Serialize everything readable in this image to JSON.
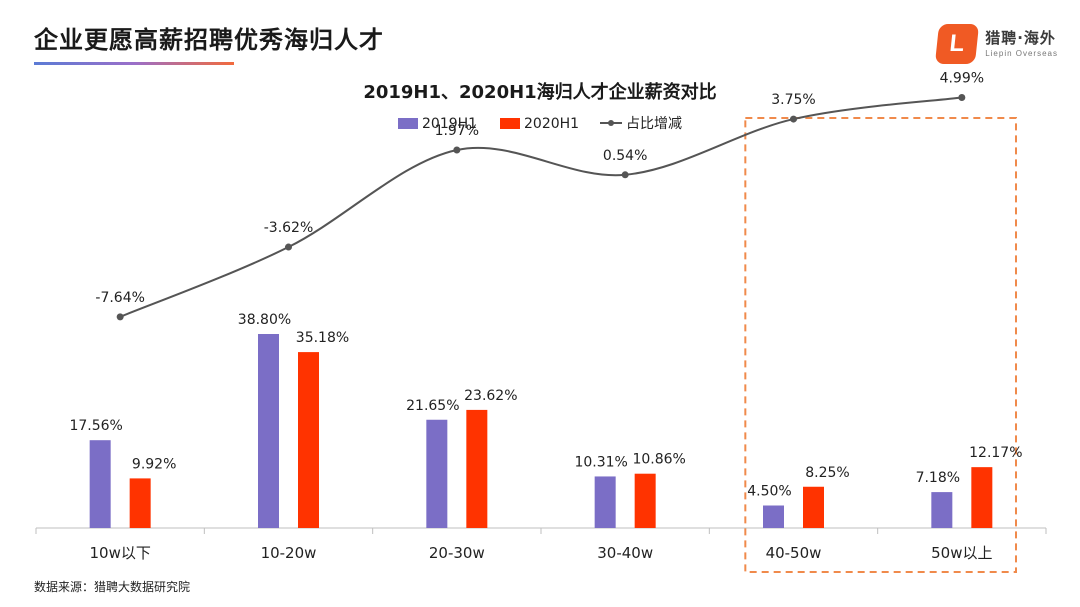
{
  "header": {
    "title": "企业更愿高薪招聘优秀海归人才",
    "logo_mark": "L",
    "logo_text": "猎聘·海外",
    "logo_subtext": "Liepin Overseas"
  },
  "footer": {
    "source": "数据来源：猎聘大数据研究院"
  },
  "colors": {
    "series_2019": "#7b6ec6",
    "series_2020": "#ff3300",
    "line": "#555555",
    "highlight_border": "#f08a4b"
  },
  "chart_data": {
    "type": "bar+line",
    "title": "2019H1、2020H1海归人才企业薪资对比",
    "categories": [
      "10w以下",
      "10-20w",
      "20-30w",
      "30-40w",
      "40-50w",
      "50w以上"
    ],
    "series": [
      {
        "name": "2019H1",
        "type": "bar",
        "values": [
          17.56,
          38.8,
          21.65,
          10.31,
          4.5,
          7.18
        ],
        "labels": [
          "17.56%",
          "38.80%",
          "21.65%",
          "10.31%",
          "4.50%",
          "7.18%"
        ]
      },
      {
        "name": "2020H1",
        "type": "bar",
        "values": [
          9.92,
          35.18,
          23.62,
          10.86,
          8.25,
          12.17
        ],
        "labels": [
          "9.92%",
          "35.18%",
          "23.62%",
          "10.86%",
          "8.25%",
          "12.17%"
        ]
      },
      {
        "name": "占比增减",
        "type": "line",
        "values": [
          -7.64,
          -3.62,
          1.97,
          0.54,
          3.75,
          4.99
        ],
        "labels": [
          "-7.64%",
          "-3.62%",
          "1.97%",
          "0.54%",
          "3.75%",
          "4.99%"
        ]
      }
    ],
    "bar_ylim": [
      0,
      100
    ],
    "line_ylim": [
      -16,
      6
    ],
    "legend_position": "top-center",
    "highlighted_categories": [
      "40-50w",
      "50w以上"
    ]
  }
}
